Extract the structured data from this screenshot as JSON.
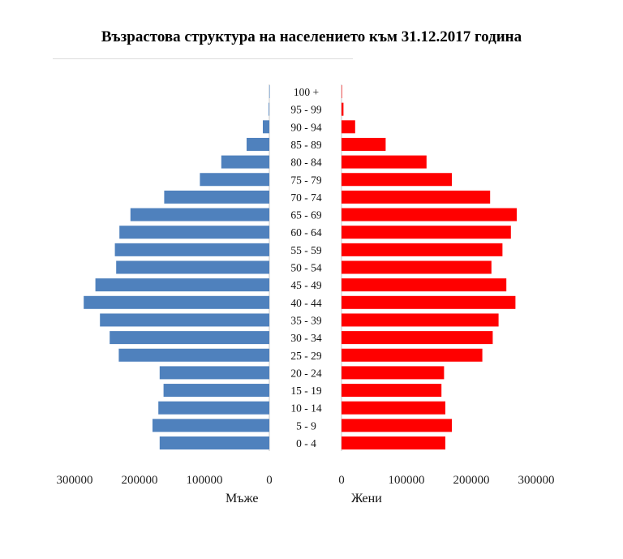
{
  "title": "Възрастова структура на населението към 31.12.2017 година",
  "chart_data": {
    "type": "bar",
    "title": "Възрастова структура на населението към 31.12.2017 година",
    "categories": [
      "0 - 4",
      "5 - 9",
      "10 - 14",
      "15 - 19",
      "20 - 24",
      "25 - 29",
      "30 - 34",
      "35 - 39",
      "40 - 44",
      "45 - 49",
      "50 - 54",
      "55 - 59",
      "60 - 64",
      "65 - 69",
      "70 - 74",
      "75 - 79",
      "80 - 84",
      "85 - 89",
      "90 - 94",
      "95 - 99",
      "100 +"
    ],
    "series": [
      {
        "name": "Мъже",
        "color": "#4f81bd",
        "values": [
          169000,
          180000,
          171000,
          163000,
          169000,
          232000,
          246000,
          261000,
          286000,
          268000,
          236000,
          238000,
          231000,
          214000,
          162000,
          107000,
          74000,
          35000,
          10000,
          1000,
          100
        ]
      },
      {
        "name": "Жени",
        "color": "#ff0000",
        "values": [
          160000,
          170000,
          160000,
          154000,
          158000,
          217000,
          233000,
          242000,
          268000,
          254000,
          231000,
          248000,
          261000,
          270000,
          229000,
          170000,
          131000,
          68000,
          21000,
          3000,
          300
        ]
      }
    ],
    "xticks_left": [
      "300000",
      "200000",
      "100000",
      "0"
    ],
    "xticks_right": [
      "0",
      "100000",
      "200000",
      "300000"
    ],
    "xlim": [
      0,
      300000
    ],
    "grid": false
  }
}
